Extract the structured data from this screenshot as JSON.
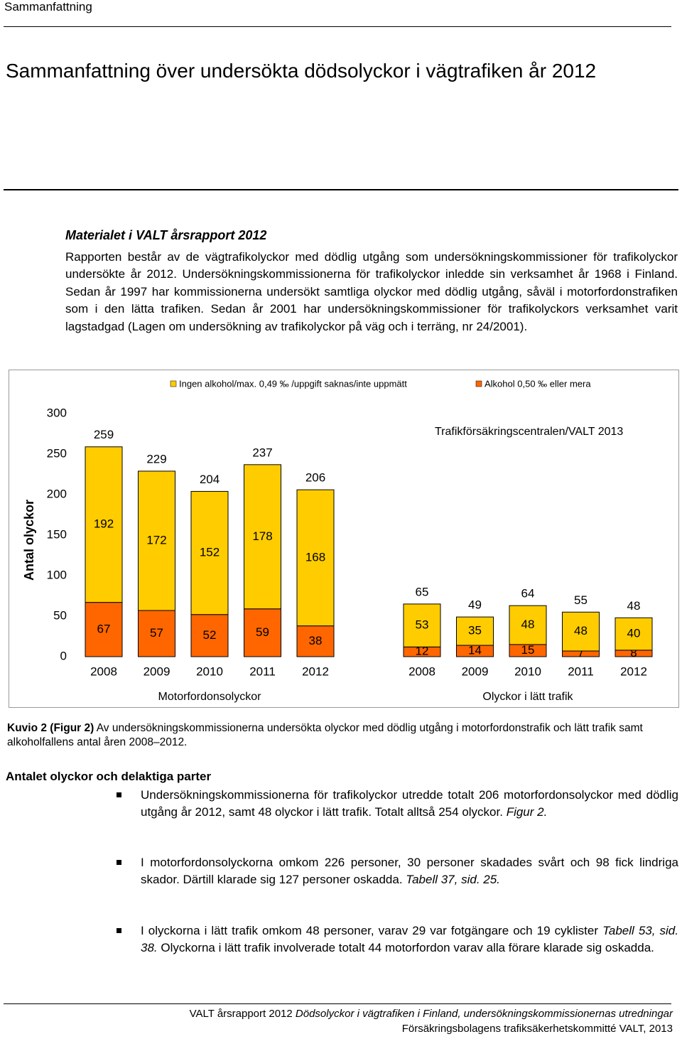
{
  "header": {
    "running_title": "Sammanfattning"
  },
  "title": "Sammanfattning över undersökta dödsolyckor i vägtrafiken år 2012",
  "section": {
    "heading": "Materialet i VALT årsrapport 2012",
    "paragraph": "Rapporten består av de vägtrafikolyckor med dödlig utgång som undersökningskommissioner för trafikolyckor undersökte år 2012. Undersökningskommissionerna för trafikolyckor inledde sin verksamhet år 1968 i Finland. Sedan år 1997 har kommissionerna undersökt samtliga olyckor med dödlig utgång, såväl i motorfordonstrafiken som i den lätta trafiken. Sedan år 2001 har undersökningskommissioner för trafikolyckors verksamhet varit lagstadgad (Lagen om undersökning av trafikolyckor på väg och i terräng, nr 24/2001)."
  },
  "chart_data": {
    "type": "stacked_bar",
    "y_label": "Antal olyckor",
    "annotation": "Trafikförsäkringscentralen/VALT 2013",
    "groups": [
      "Motorfordonsolyckor",
      "Olyckor i lätt trafik"
    ],
    "categories": [
      "2008",
      "2009",
      "2010",
      "2011",
      "2012",
      "2008",
      "2009",
      "2010",
      "2011",
      "2012"
    ],
    "series": [
      {
        "name": "Alkohol 0,50 ‰ eller mera",
        "color": "#ff6600",
        "values": [
          67,
          57,
          52,
          59,
          38,
          12,
          14,
          15,
          7,
          8
        ]
      },
      {
        "name": "Ingen alkohol/max. 0,49 ‰ /uppgift saknas/inte uppmätt",
        "color": "#ffcc00",
        "values": [
          192,
          172,
          152,
          178,
          168,
          53,
          35,
          48,
          48,
          40
        ]
      }
    ],
    "totals": [
      259,
      229,
      204,
      237,
      206,
      65,
      49,
      64,
      55,
      48
    ],
    "ylim": [
      0,
      300
    ],
    "yticks": [
      0,
      50,
      100,
      150,
      200,
      250,
      300
    ]
  },
  "caption": {
    "label": "Kuvio 2 (Figur 2)",
    "text": " Av undersökningskommissionerna undersökta olyckor med dödlig utgång i motorfordonstrafik och lätt trafik samt alkoholfallens antal åren 2008–2012."
  },
  "section2": {
    "heading": "Antalet olyckor och delaktiga parter",
    "bullets": [
      [
        {
          "text": "Undersökningskommissionerna för trafikolyckor utredde totalt 206 motorfordonsolyckor med dödlig utgång år 2012, samt 48 olyckor i lätt trafik. Totalt alltså 254 olyckor. "
        },
        {
          "text": "Figur 2.",
          "italic": true
        }
      ],
      [
        {
          "text": "I motorfordonsolyckorna omkom 226 personer, 30 personer skadades svårt och 98 fick lindriga skador. Därtill klarade sig 127 personer oskadda. "
        },
        {
          "text": "Tabell 37, sid. 25.",
          "italic": true
        }
      ],
      [
        {
          "text": "I olyckorna i lätt trafik omkom 48 personer, varav 29 var fotgängare och 19 cyklister "
        },
        {
          "text": "Tabell 53, sid. 38.",
          "italic": true
        },
        {
          "text": " Olyckorna i lätt trafik involverade totalt 44 motorfordon varav alla förare klarade sig oskadda."
        }
      ]
    ]
  },
  "footer": {
    "line1": [
      {
        "text": "VALT årsrapport 2012 "
      },
      {
        "text": "Dödsolyckor i vägtrafiken i Finland, undersökningskommissionernas utredningar",
        "italic": true
      }
    ],
    "line2": "Försäkringsbolagens trafiksäkerhetskommitté VALT, 2013"
  }
}
